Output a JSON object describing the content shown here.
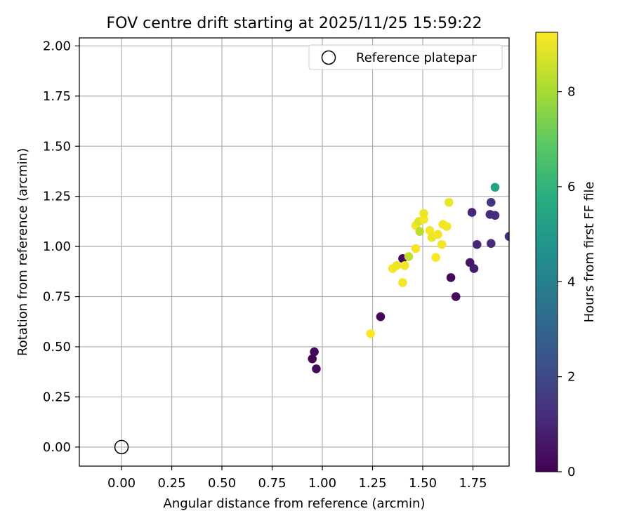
{
  "chart_data": {
    "type": "scatter",
    "title": "FOV centre drift starting at 2025/11/25 15:59:22",
    "xlabel": "Angular distance from reference (arcmin)",
    "ylabel": "Rotation from reference (arcmin)",
    "xlim": [
      -0.21,
      1.93
    ],
    "ylim": [
      -0.095,
      2.04
    ],
    "xticks": [
      "0.00",
      "0.25",
      "0.50",
      "0.75",
      "1.00",
      "1.25",
      "1.50",
      "1.75"
    ],
    "yticks": [
      "0.00",
      "0.25",
      "0.50",
      "0.75",
      "1.00",
      "1.25",
      "1.50",
      "1.75",
      "2.00"
    ],
    "grid": true,
    "legend": {
      "position": "top-right",
      "entries": [
        "Reference platepar"
      ]
    },
    "reference_point": {
      "x": 0.0,
      "y": 0.0
    },
    "colorbar": {
      "label": "Hours from first FF file",
      "colormap": "viridis",
      "range": [
        0,
        9.25
      ],
      "ticks": [
        "0",
        "2",
        "4",
        "6",
        "8"
      ]
    },
    "points": [
      {
        "x": 0.95,
        "y": 0.44,
        "h": 0.1
      },
      {
        "x": 0.96,
        "y": 0.475,
        "h": 0.2
      },
      {
        "x": 0.97,
        "y": 0.39,
        "h": 0.3
      },
      {
        "x": 1.29,
        "y": 0.65,
        "h": 0.2
      },
      {
        "x": 1.4,
        "y": 0.94,
        "h": 0.2
      },
      {
        "x": 1.64,
        "y": 0.845,
        "h": 0.2
      },
      {
        "x": 1.665,
        "y": 0.75,
        "h": 0.3
      },
      {
        "x": 1.735,
        "y": 0.92,
        "h": 0.5
      },
      {
        "x": 1.755,
        "y": 0.89,
        "h": 0.7
      },
      {
        "x": 1.745,
        "y": 1.17,
        "h": 1.0
      },
      {
        "x": 1.77,
        "y": 1.01,
        "h": 1.0
      },
      {
        "x": 1.835,
        "y": 1.16,
        "h": 1.1
      },
      {
        "x": 1.84,
        "y": 1.22,
        "h": 1.4
      },
      {
        "x": 1.84,
        "y": 1.015,
        "h": 1.1
      },
      {
        "x": 1.86,
        "y": 1.155,
        "h": 1.2
      },
      {
        "x": 1.93,
        "y": 1.05,
        "h": 1.2
      },
      {
        "x": 1.86,
        "y": 1.295,
        "h": 5.3
      },
      {
        "x": 1.24,
        "y": 0.565,
        "h": 9.2
      },
      {
        "x": 1.35,
        "y": 0.89,
        "h": 9.1
      },
      {
        "x": 1.37,
        "y": 0.905,
        "h": 9.0
      },
      {
        "x": 1.4,
        "y": 0.82,
        "h": 9.1
      },
      {
        "x": 1.41,
        "y": 0.905,
        "h": 9.1
      },
      {
        "x": 1.43,
        "y": 0.95,
        "h": 8.4
      },
      {
        "x": 1.465,
        "y": 0.99,
        "h": 9.1
      },
      {
        "x": 1.465,
        "y": 1.105,
        "h": 9.1
      },
      {
        "x": 1.48,
        "y": 1.125,
        "h": 8.8
      },
      {
        "x": 1.485,
        "y": 1.075,
        "h": 8.3
      },
      {
        "x": 1.505,
        "y": 1.165,
        "h": 9.0
      },
      {
        "x": 1.505,
        "y": 1.135,
        "h": 9.1
      },
      {
        "x": 1.535,
        "y": 1.08,
        "h": 9.1
      },
      {
        "x": 1.545,
        "y": 1.045,
        "h": 9.0
      },
      {
        "x": 1.565,
        "y": 0.945,
        "h": 9.2
      },
      {
        "x": 1.575,
        "y": 1.06,
        "h": 9.1
      },
      {
        "x": 1.595,
        "y": 1.01,
        "h": 9.1
      },
      {
        "x": 1.6,
        "y": 1.11,
        "h": 9.1
      },
      {
        "x": 1.62,
        "y": 1.1,
        "h": 9.1
      },
      {
        "x": 1.63,
        "y": 1.22,
        "h": 9.0
      }
    ]
  }
}
